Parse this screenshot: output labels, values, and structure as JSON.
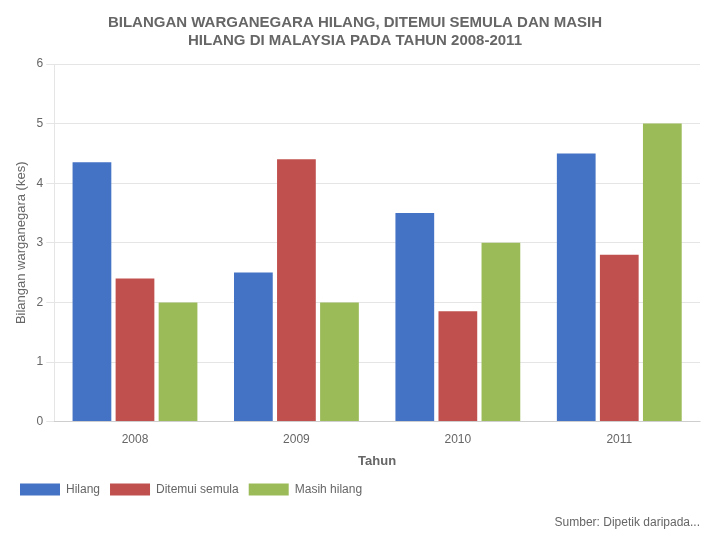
{
  "chart_data": {
    "type": "bar",
    "title": [
      "BILANGAN WARGANEGARA HILANG, DITEMUI SEMULA DAN MASIH",
      "HILANG DI MALAYSIA PADA TAHUN 2008-2011"
    ],
    "x_label": "Tahun",
    "y_label": "Bilangan warganegara (kes)",
    "annotation": "Sumber: Dipetik daripada...",
    "categories": [
      "2008",
      "2009",
      "2010",
      "2011"
    ],
    "series": [
      {
        "name": "Hilang",
        "color": "#4472C4",
        "values": [
          4.35,
          2.5,
          3.5,
          4.5
        ]
      },
      {
        "name": "Ditemui semula",
        "color": "#C0504D",
        "values": [
          2.4,
          4.4,
          1.85,
          2.8
        ]
      },
      {
        "name": "Masih hilang",
        "color": "#9BBB59",
        "values": [
          2.0,
          2.0,
          3.0,
          5.0
        ]
      }
    ],
    "ylim": [
      0,
      6
    ],
    "yticks": [
      0,
      1,
      2,
      3,
      4,
      5,
      6
    ],
    "grid": true,
    "legend": "lower left"
  }
}
